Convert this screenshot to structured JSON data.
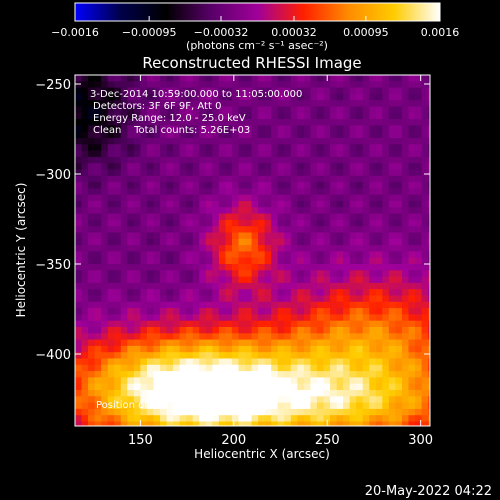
{
  "chart_data": {
    "type": "heatmap",
    "title": "Reconstructed RHESSI Image",
    "xlabel": "Heliocentric X (arcsec)",
    "ylabel": "Heliocentric Y (arcsec)",
    "xlim": [
      115,
      305
    ],
    "ylim": [
      -440,
      -245
    ],
    "x_ticks": [
      150,
      200,
      250,
      300
    ],
    "y_ticks": [
      -250,
      -300,
      -350,
      -400
    ],
    "x_tick_labels": [
      "150",
      "200",
      "250",
      "300"
    ],
    "y_tick_labels": [
      "−250",
      "−300",
      "−350",
      "−400"
    ],
    "colorbar": {
      "min": -0.0016,
      "max": 0.0016,
      "tick_values": [
        -0.0016,
        -0.00095,
        -0.00032,
        0.00032,
        0.00095,
        0.0016
      ],
      "tick_labels": [
        "−0.0016",
        "−0.00095",
        "−0.00032",
        "0.00032",
        "0.00095",
        "0.0016"
      ],
      "units_label": "(photons cm⁻² s⁻¹ asec⁻²)",
      "colormap_stops": [
        "#0000ff",
        "#00004a",
        "#000000",
        "#5a006a",
        "#a0009a",
        "#ff1f00",
        "#ff8c00",
        "#ffcc00",
        "#ffffff"
      ]
    },
    "info_lines": [
      "3-Dec-2014 10:59:00.000 to 11:05:00.000",
      "Detectors: 3F 6F 9F, Att 0",
      "Energy Range: 12.0 - 25.0 keV",
      "Clean    Total counts: 5.26E+03"
    ],
    "peak_label": "Position of Peak = [180, -420]",
    "peak_position": [
      180,
      -420
    ],
    "total_counts": 5260,
    "energy_range_keV": [
      12.0,
      25.0
    ],
    "grid": false
  },
  "footer": {
    "timestamp": "20-May-2022 04:22"
  }
}
